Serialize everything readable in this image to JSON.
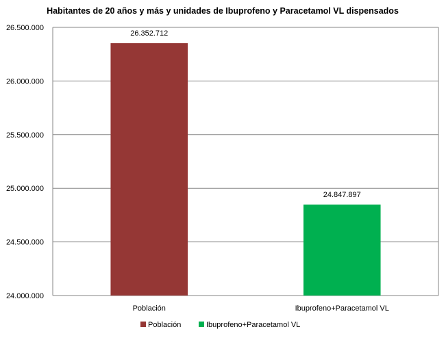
{
  "chart_data": {
    "type": "bar",
    "title": "Habitantes de 20 años y más y unidades de Ibuprofeno y   Paracetamol  VL dispensados",
    "categories": [
      "Población",
      "Ibuprofeno+Paracetamol VL"
    ],
    "values": [
      26352712,
      24847897
    ],
    "data_labels": [
      "26.352.712",
      "24.847.897"
    ],
    "ylim": [
      24000000,
      26500000
    ],
    "yticks": [
      24000000,
      24500000,
      25000000,
      25500000,
      26000000,
      26500000
    ],
    "ytick_labels": [
      "24.000.000",
      "24.500.000",
      "25.000.000",
      "25.500.000",
      "26.000.000",
      "26.500.000"
    ],
    "xlabel": "",
    "ylabel": "",
    "grid": true,
    "legend_position": "bottom",
    "legend": [
      "Población",
      "Ibuprofeno+Paracetamol VL"
    ],
    "colors": [
      "#953735",
      "#00B050"
    ]
  }
}
